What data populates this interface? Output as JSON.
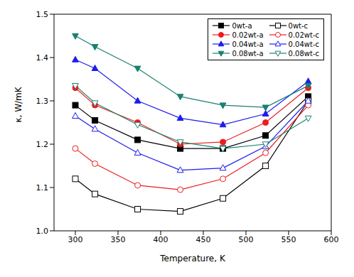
{
  "chart_data": {
    "type": "line",
    "x_label": "Temperature, K",
    "y_label": "κ, W/mK",
    "x": [
      300,
      323,
      373,
      423,
      473,
      523,
      573
    ],
    "xlim": [
      275,
      600
    ],
    "xticks": [
      300,
      350,
      400,
      450,
      500,
      550,
      600
    ],
    "ylim": [
      1.0,
      1.5
    ],
    "yticks": [
      {
        "value": 1.0,
        "label": "1.0"
      },
      1.1,
      1.2,
      1.3,
      1.4,
      1.5
    ],
    "legend": "upper right",
    "series": [
      {
        "name": "0wt-a",
        "color": "#000000",
        "marker": "square",
        "line_style": "solid",
        "values": [
          1.29,
          1.255,
          1.21,
          1.19,
          1.19,
          1.22,
          1.31
        ]
      },
      {
        "name": "0wt-c",
        "color": "#000000",
        "marker": "square-open",
        "line_style": "solid",
        "values": [
          1.12,
          1.085,
          1.05,
          1.045,
          1.075,
          1.15,
          1.3
        ]
      },
      {
        "name": "0.02wt-a",
        "color": "#ee1c1c",
        "marker": "circle",
        "line_style": "solid",
        "values": [
          1.33,
          1.29,
          1.25,
          1.2,
          1.205,
          1.25,
          1.33
        ]
      },
      {
        "name": "0.02wt-c",
        "color": "#ee1c1c",
        "marker": "circle-open",
        "line_style": "solid",
        "values": [
          1.19,
          1.155,
          1.105,
          1.095,
          1.12,
          1.18,
          1.29
        ]
      },
      {
        "name": "0.04wt-a",
        "color": "#1c1cee",
        "marker": "triangle",
        "line_style": "solid",
        "values": [
          1.395,
          1.375,
          1.3,
          1.26,
          1.245,
          1.27,
          1.345
        ]
      },
      {
        "name": "0.04wt-c",
        "color": "#1c1cee",
        "marker": "triangle-open",
        "line_style": "solid",
        "values": [
          1.265,
          1.235,
          1.18,
          1.14,
          1.145,
          1.195,
          1.3
        ]
      },
      {
        "name": "0.08wt-a",
        "color": "#1a8070",
        "marker": "triangle-down",
        "line_style": "solid",
        "values": [
          1.45,
          1.425,
          1.375,
          1.31,
          1.29,
          1.285,
          1.335
        ]
      },
      {
        "name": "0.08wt-c",
        "color": "#1a8070",
        "marker": "triangle-down-open",
        "line_style": "solid",
        "values": [
          1.335,
          1.295,
          1.245,
          1.205,
          1.19,
          1.2,
          1.26
        ]
      }
    ]
  }
}
